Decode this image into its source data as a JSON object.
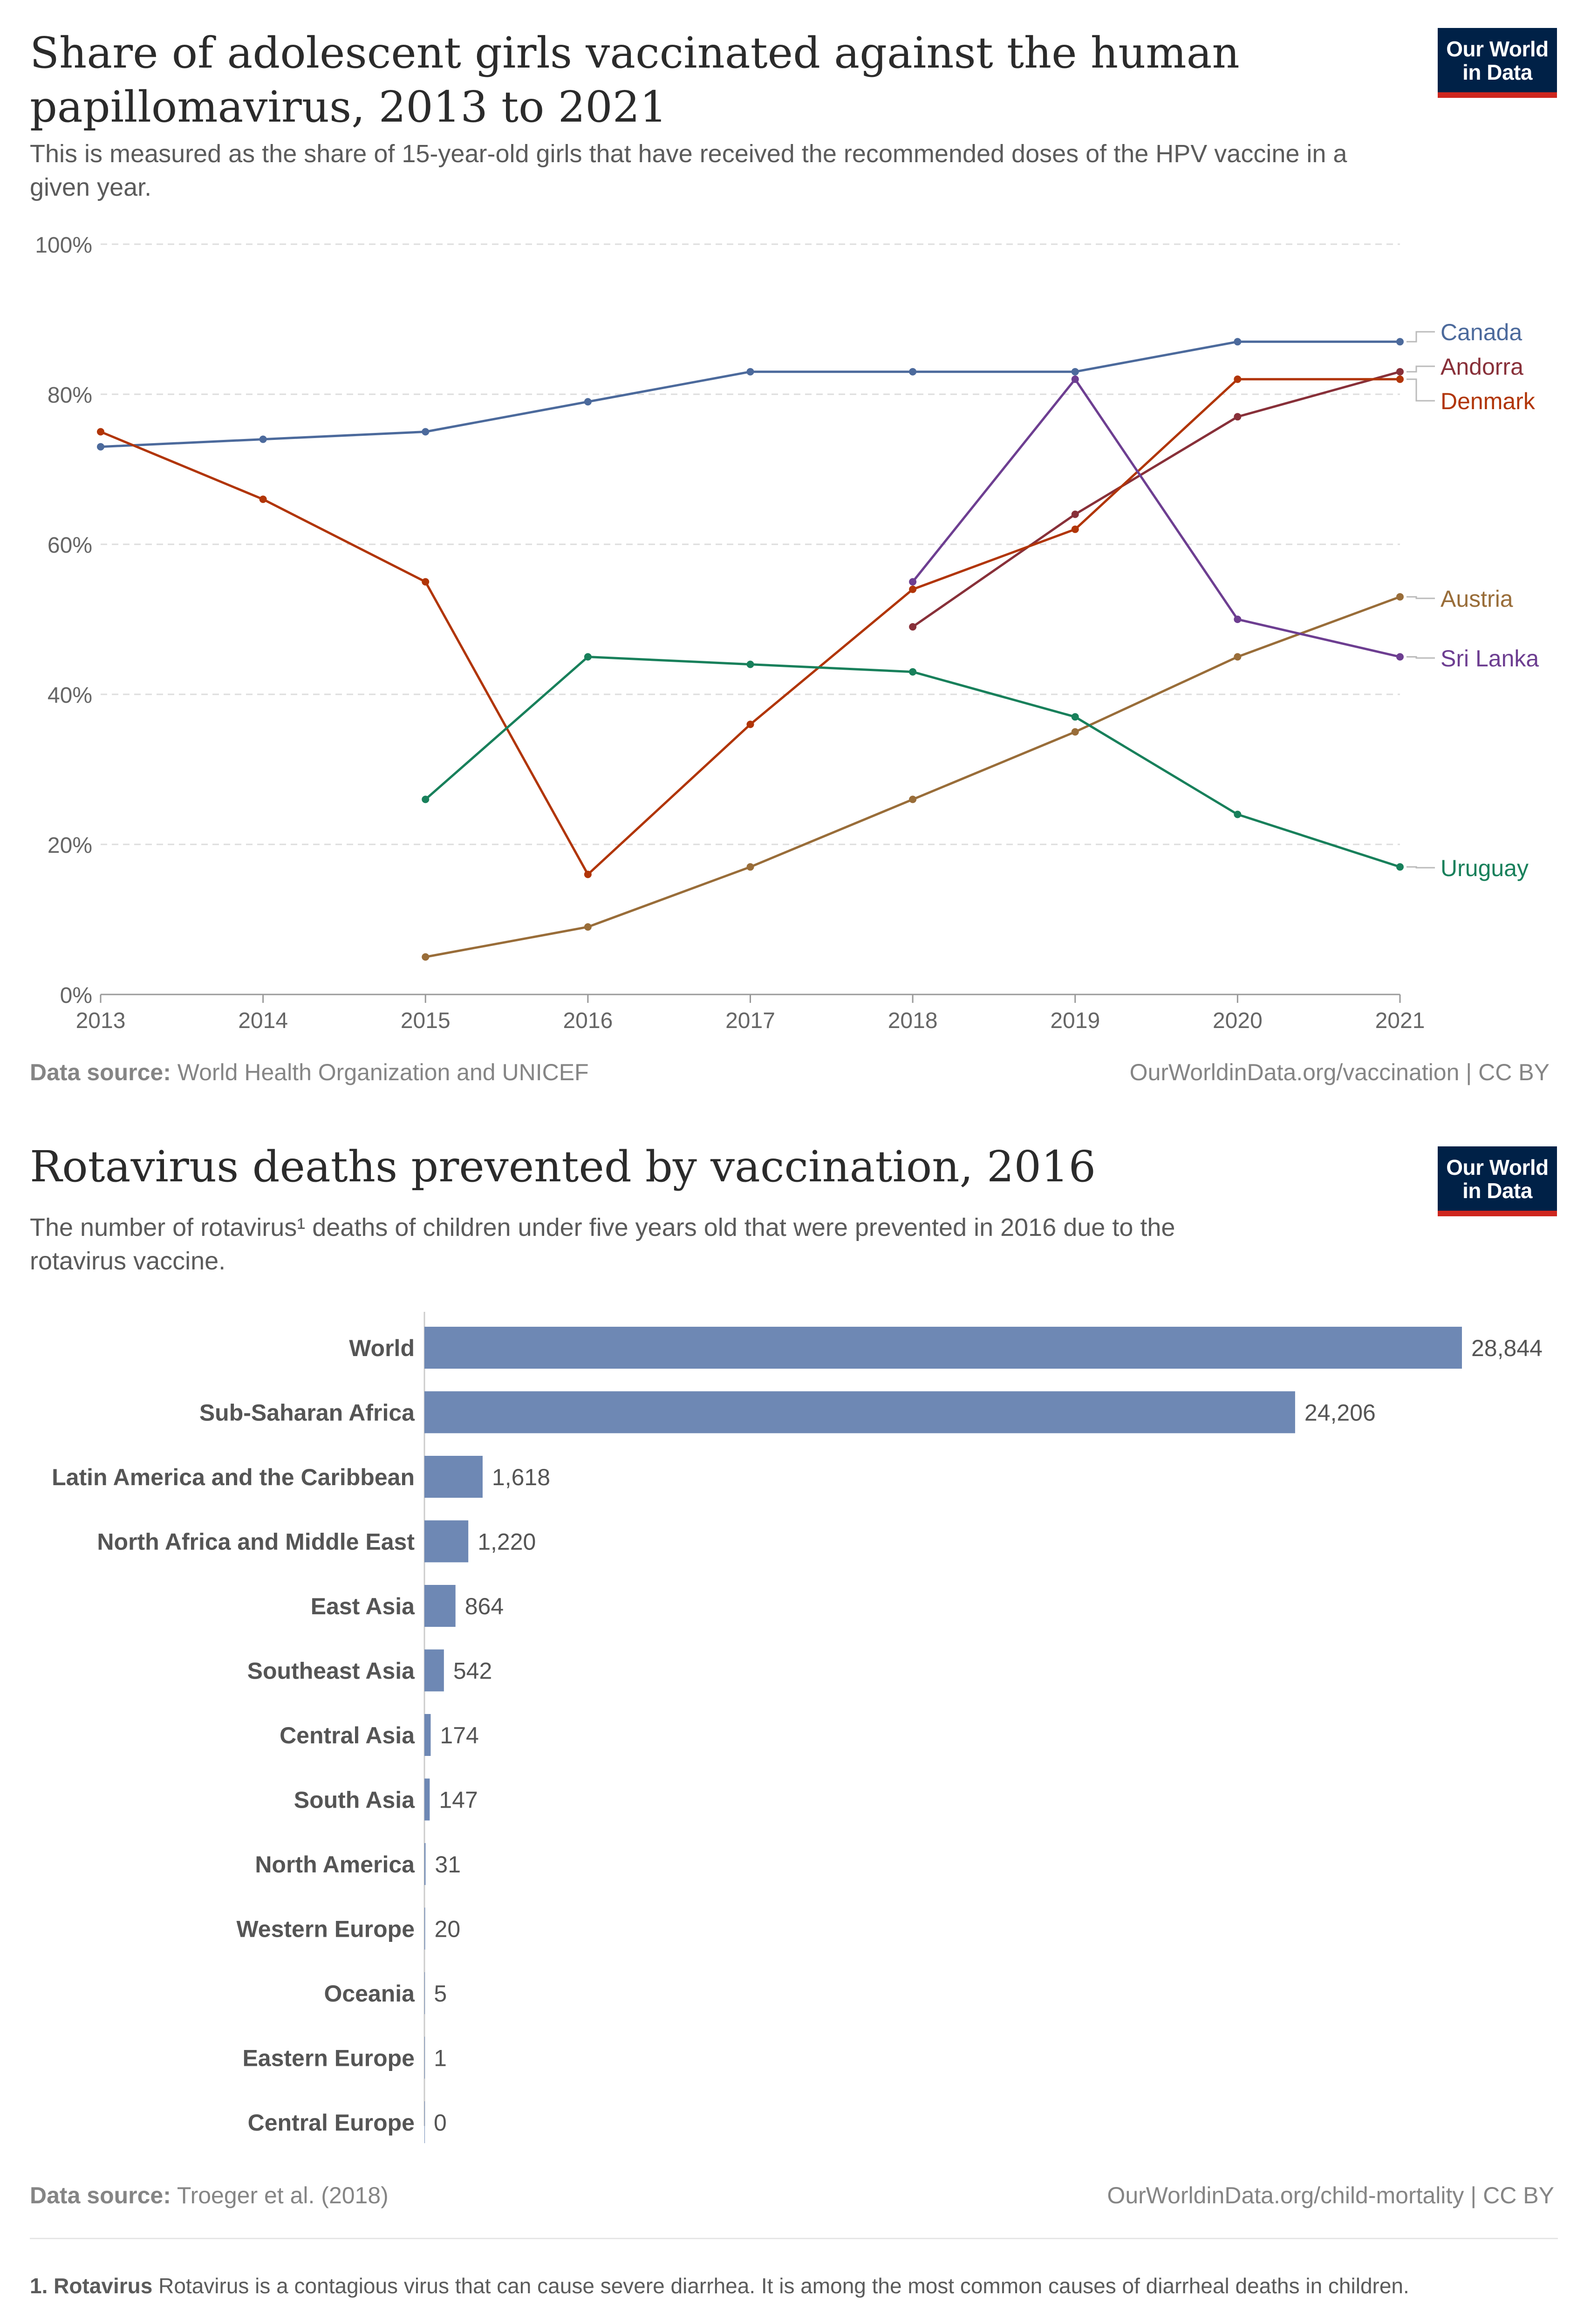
{
  "logo": {
    "line1": "Our World",
    "line2": "in Data"
  },
  "colors": {
    "Canada": "#4c6a9c",
    "Andorra": "#883039",
    "Denmark": "#b13507",
    "Austria": "#996d39",
    "Sri Lanka": "#6d3e91",
    "Uruguay": "#18805b",
    "bar": "#6e88b4"
  },
  "chart1": {
    "title_line1": "Share of adolescent girls vaccinated against the human",
    "title_line2": "papillomavirus, 2013 to 2021",
    "subtitle_line1": "This is measured as the share of 15-year-old girls that have received the recommended doses of the HPV vaccine in a",
    "subtitle_line2": "given year.",
    "source_label": "Data source:",
    "source_text": "World Health Organization and UNICEF",
    "url": "OurWorldinData.org/vaccination | CC BY"
  },
  "chart2": {
    "title": "Rotavirus deaths prevented by vaccination, 2016",
    "subtitle_line1": "The number of rotavirus¹ deaths of children under five years old that were prevented in 2016 due to the",
    "subtitle_line2": "rotavirus vaccine.",
    "source_label": "Data source:",
    "source_text": "Troeger et al. (2018)",
    "url": "OurWorldinData.org/child-mortality | CC BY"
  },
  "footnote": {
    "number": "1.",
    "term": "Rotavirus",
    "text": "Rotavirus is a contagious virus that can cause severe diarrhea. It is among the most common causes of diarrheal deaths in children."
  },
  "chart_data": [
    {
      "type": "line",
      "title": "Share of adolescent girls vaccinated against the human papillomavirus, 2013 to 2021",
      "xlabel": "",
      "ylabel": "",
      "x": [
        2013,
        2014,
        2015,
        2016,
        2017,
        2018,
        2019,
        2020,
        2021
      ],
      "ylim": [
        0,
        100
      ],
      "yticks": [
        0,
        20,
        40,
        60,
        80,
        100
      ],
      "ytick_labels": [
        "0%",
        "20%",
        "40%",
        "60%",
        "80%",
        "100%"
      ],
      "grid": true,
      "series": [
        {
          "name": "Canada",
          "values": [
            73,
            74,
            75,
            79,
            83,
            83,
            83,
            87,
            87
          ]
        },
        {
          "name": "Andorra",
          "values": [
            null,
            null,
            null,
            null,
            null,
            49,
            64,
            77,
            83
          ]
        },
        {
          "name": "Denmark",
          "values": [
            75,
            66,
            55,
            16,
            36,
            54,
            62,
            82,
            82
          ]
        },
        {
          "name": "Austria",
          "values": [
            null,
            null,
            5,
            9,
            17,
            26,
            35,
            45,
            53
          ]
        },
        {
          "name": "Sri Lanka",
          "values": [
            null,
            null,
            null,
            null,
            null,
            55,
            82,
            50,
            45
          ]
        },
        {
          "name": "Uruguay",
          "values": [
            null,
            null,
            26,
            45,
            44,
            43,
            37,
            24,
            17
          ]
        }
      ]
    },
    {
      "type": "bar",
      "orientation": "horizontal",
      "title": "Rotavirus deaths prevented by vaccination, 2016",
      "categories": [
        "World",
        "Sub-Saharan Africa",
        "Latin America and the Caribbean",
        "North Africa and Middle East",
        "East Asia",
        "Southeast Asia",
        "Central Asia",
        "South Asia",
        "North America",
        "Western Europe",
        "Oceania",
        "Eastern Europe",
        "Central Europe"
      ],
      "values": [
        28844,
        24206,
        1618,
        1220,
        864,
        542,
        174,
        147,
        31,
        20,
        5,
        1,
        0
      ],
      "value_labels": [
        "28,844",
        "24,206",
        "1,618",
        "1,220",
        "864",
        "542",
        "174",
        "147",
        "31",
        "20",
        "5",
        "1",
        "0"
      ],
      "xlim": [
        0,
        28844
      ]
    }
  ]
}
